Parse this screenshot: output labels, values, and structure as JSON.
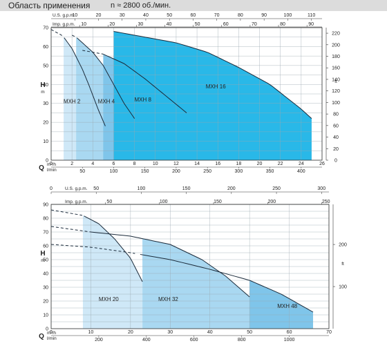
{
  "header": {
    "title": "Область применения",
    "condition": "n ≈ 2800 об./мин."
  },
  "chart_data": [
    {
      "type": "area",
      "axes": {
        "q_m3h": {
          "label": "Q",
          "unit": "m³/h",
          "range": [
            0,
            26
          ],
          "ticks": [
            0,
            2,
            4,
            6,
            8,
            10,
            12,
            14,
            16,
            18,
            20,
            22,
            24,
            26
          ]
        },
        "q_lmin": {
          "unit": "l/min",
          "ticks": [
            50,
            100,
            150,
            200,
            250,
            300,
            350,
            400
          ]
        },
        "us_gpm": {
          "label": "U.S. g.p.m.",
          "ticks": [
            10,
            20,
            30,
            40,
            50,
            60,
            70,
            80,
            90,
            100,
            110
          ]
        },
        "imp_gpm": {
          "label": "Imp. g.p.m.",
          "ticks": [
            10,
            20,
            30,
            40,
            50,
            60,
            70,
            80,
            90
          ]
        },
        "h_m": {
          "label": "H",
          "unit": "m",
          "range": [
            0,
            70
          ],
          "ticks": [
            0,
            10,
            20,
            30,
            40,
            50,
            60,
            70
          ]
        },
        "h_ft": {
          "unit": "ft",
          "ticks": [
            0,
            20,
            40,
            60,
            80,
            100,
            120,
            140,
            160,
            180,
            200,
            220
          ]
        }
      },
      "series": [
        {
          "name": "MXH 2",
          "color": "#cfe8f7",
          "q_range": [
            1.2,
            3.6
          ],
          "head_curve": [
            [
              0,
              69
            ],
            [
              1,
              66
            ],
            [
              1.2,
              65
            ],
            [
              2,
              59
            ],
            [
              3,
              48
            ],
            [
              3.6,
              40
            ],
            [
              4.5,
              27
            ],
            [
              5.2,
              18
            ]
          ],
          "dashed_until": 1.2
        },
        {
          "name": "MXH 4",
          "color": "#a9d8f1",
          "q_range": [
            2.4,
            6.0
          ],
          "head_curve": [
            [
              2,
              66
            ],
            [
              2.4,
              65
            ],
            [
              4,
              57
            ],
            [
              5,
              50
            ],
            [
              6,
              40
            ],
            [
              7,
              30
            ],
            [
              8,
              22
            ]
          ],
          "dashed_until": 2.4
        },
        {
          "name": "MXH 8",
          "color": "#7fc5ea",
          "q_range": [
            5.0,
            13.0
          ],
          "head_curve": [
            [
              3,
              58
            ],
            [
              5,
              56
            ],
            [
              7,
              51
            ],
            [
              9,
              43
            ],
            [
              11,
              34
            ],
            [
              13,
              25
            ]
          ],
          "dashed_until": 5
        },
        {
          "name": "MXH 16",
          "color": "#29b8e8",
          "q_range": [
            6.0,
            25.0
          ],
          "head_curve": [
            [
              6,
              68
            ],
            [
              9,
              65
            ],
            [
              12,
              62
            ],
            [
              15,
              57
            ],
            [
              18,
              49
            ],
            [
              21,
              40
            ],
            [
              24,
              27
            ],
            [
              25,
              22
            ]
          ],
          "dashed_until": 6
        }
      ]
    },
    {
      "type": "area",
      "axes": {
        "q_m3h": {
          "label": "Q",
          "unit": "m³/h",
          "range": [
            0,
            70
          ],
          "ticks": [
            0,
            10,
            20,
            30,
            40,
            50,
            60,
            70
          ]
        },
        "q_lmin": {
          "unit": "l/min",
          "ticks": [
            200,
            400,
            600,
            800,
            1000
          ]
        },
        "us_gpm": {
          "label": "U.S. g.p.m.",
          "ticks": [
            0,
            50,
            100,
            150,
            200,
            250,
            300
          ]
        },
        "imp_gpm": {
          "label": "Imp. g.p.m.",
          "ticks": [
            50,
            100,
            150,
            200,
            250
          ]
        },
        "h_m": {
          "label": "H",
          "unit": "m",
          "range": [
            0,
            90
          ],
          "ticks": [
            0,
            10,
            20,
            30,
            40,
            50,
            60,
            70,
            80,
            90
          ]
        },
        "h_ft": {
          "unit": "ft",
          "ticks": [
            100,
            200
          ]
        }
      },
      "series": [
        {
          "name": "MXH 20",
          "color": "#cfe8f7",
          "q_range": [
            8.0,
            23.0
          ],
          "head_curve": [
            [
              0,
              86
            ],
            [
              8,
              82
            ],
            [
              12,
              76
            ],
            [
              16,
              65
            ],
            [
              20,
              51
            ],
            [
              23,
              34
            ]
          ],
          "dashed_until": 8
        },
        {
          "name": "MXH 32",
          "color": "#a9d8f1",
          "q_range": [
            23.0,
            50.0
          ],
          "head_curve": [
            [
              0,
              74
            ],
            [
              10,
              70
            ],
            [
              20,
              67
            ],
            [
              30,
              61
            ],
            [
              38,
              50
            ],
            [
              44,
              38
            ],
            [
              50,
              23
            ]
          ],
          "dashed_until": 10
        },
        {
          "name": "MXH 48",
          "color": "#7fc5ea",
          "q_range": [
            50.0,
            66.0
          ],
          "head_curve": [
            [
              0,
              61
            ],
            [
              10,
              59
            ],
            [
              20,
              55
            ],
            [
              30,
              50
            ],
            [
              40,
              43
            ],
            [
              50,
              35
            ],
            [
              58,
              25
            ],
            [
              66,
              12
            ]
          ],
          "dashed_until": 22
        }
      ]
    }
  ]
}
